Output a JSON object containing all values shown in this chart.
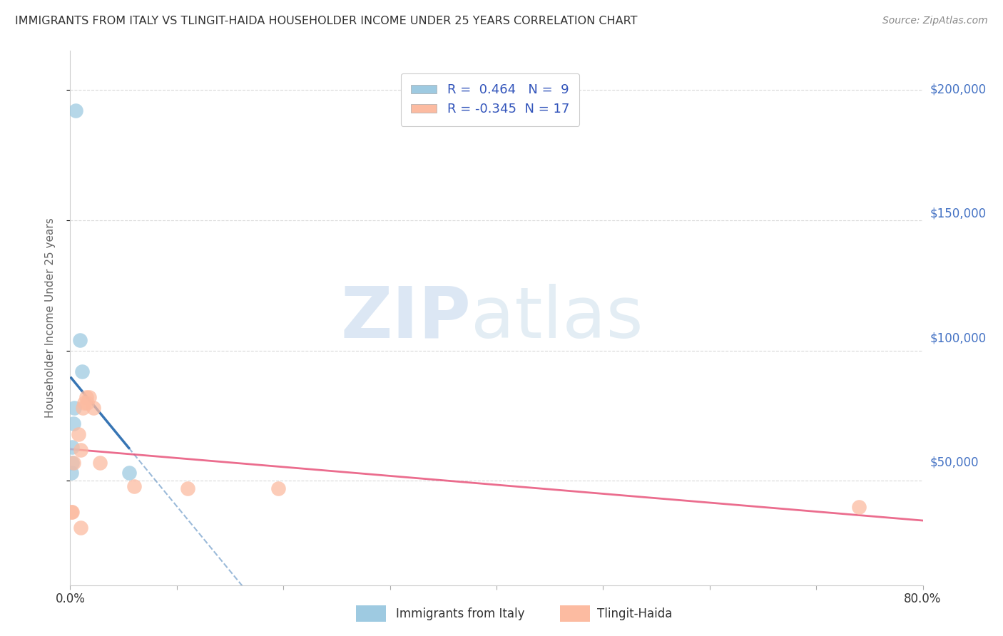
{
  "title": "IMMIGRANTS FROM ITALY VS TLINGIT-HAIDA HOUSEHOLDER INCOME UNDER 25 YEARS CORRELATION CHART",
  "source": "Source: ZipAtlas.com",
  "ylabel": "Householder Income Under 25 years",
  "xlim": [
    0.0,
    0.8
  ],
  "ylim": [
    10000,
    215000
  ],
  "yticks": [
    0,
    50000,
    100000,
    150000,
    200000
  ],
  "ytick_labels": [
    "",
    "$50,000",
    "$100,000",
    "$150,000",
    "$200,000"
  ],
  "blue_R": 0.464,
  "blue_N": 9,
  "pink_R": -0.345,
  "pink_N": 17,
  "legend1_label": "Immigrants from Italy",
  "legend2_label": "Tlingit-Haida",
  "blue_dots": [
    [
      0.005,
      192000
    ],
    [
      0.009,
      104000
    ],
    [
      0.011,
      92000
    ],
    [
      0.004,
      78000
    ],
    [
      0.003,
      72000
    ],
    [
      0.002,
      63000
    ],
    [
      0.002,
      57000
    ],
    [
      0.001,
      53000
    ],
    [
      0.055,
      53000
    ]
  ],
  "pink_dots": [
    [
      0.001,
      38000
    ],
    [
      0.002,
      38000
    ],
    [
      0.003,
      57000
    ],
    [
      0.008,
      68000
    ],
    [
      0.01,
      62000
    ],
    [
      0.012,
      78000
    ],
    [
      0.013,
      80000
    ],
    [
      0.015,
      82000
    ],
    [
      0.016,
      80000
    ],
    [
      0.018,
      82000
    ],
    [
      0.022,
      78000
    ],
    [
      0.028,
      57000
    ],
    [
      0.06,
      48000
    ],
    [
      0.11,
      47000
    ],
    [
      0.195,
      47000
    ],
    [
      0.01,
      32000
    ],
    [
      0.74,
      40000
    ]
  ],
  "blue_color": "#9ecae1",
  "pink_color": "#fcbba1",
  "blue_line_color": "#2166ac",
  "pink_line_color": "#e8537a",
  "grid_color": "#d0d0d0",
  "bg_color": "#ffffff",
  "title_color": "#333333",
  "axis_label_color": "#666666",
  "right_tick_color": "#4472c4",
  "source_color": "#888888"
}
